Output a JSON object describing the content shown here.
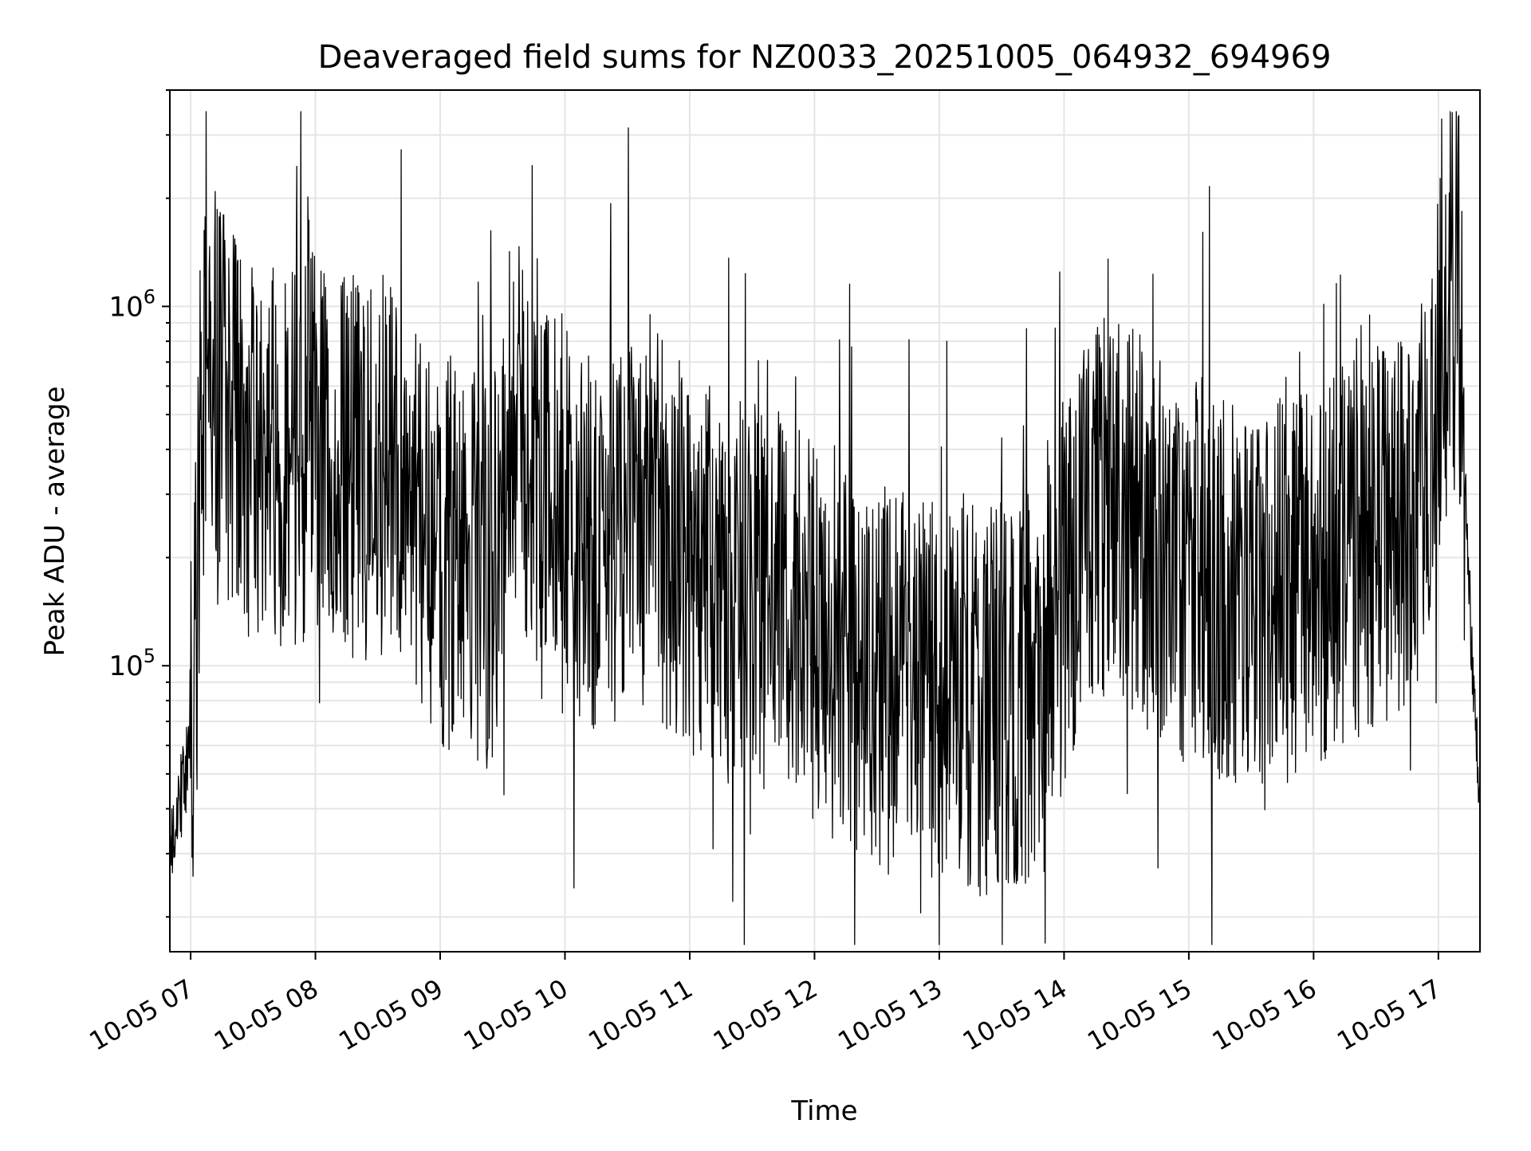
{
  "chart_data": {
    "type": "line",
    "title": "Deaveraged field sums for NZ0033_20251005_064932_694969",
    "xlabel": "Time",
    "ylabel": "Peak ADU - average",
    "yscale": "log",
    "ylim": [
      16000,
      4000000
    ],
    "xlim": [
      "2025-10-05 06:50",
      "2025-10-05 17:20"
    ],
    "grid": true,
    "line_color": "#000000",
    "grid_color": "#e5e5e5",
    "x_ticks": [
      "10-05 07",
      "10-05 08",
      "10-05 09",
      "10-05 10",
      "10-05 11",
      "10-05 12",
      "10-05 13",
      "10-05 14",
      "10-05 15",
      "10-05 16",
      "10-05 17"
    ],
    "x_tick_values": [
      "2025-10-05 07:00",
      "2025-10-05 08:00",
      "2025-10-05 09:00",
      "2025-10-05 10:00",
      "2025-10-05 11:00",
      "2025-10-05 12:00",
      "2025-10-05 13:00",
      "2025-10-05 14:00",
      "2025-10-05 15:00",
      "2025-10-05 16:00",
      "2025-10-05 17:00"
    ],
    "y_ticks": [
      {
        "value": 100000,
        "base": "10",
        "exp": "5"
      },
      {
        "value": 1000000,
        "base": "10",
        "exp": "6"
      }
    ],
    "series": [
      {
        "x": [
          "2025-10-05 06:50",
          "2025-10-05 06:55",
          "2025-10-05 07:00",
          "2025-10-05 07:03",
          "2025-10-05 07:05",
          "2025-10-05 07:10",
          "2025-10-05 07:20",
          "2025-10-05 07:30",
          "2025-10-05 07:45",
          "2025-10-05 08:00",
          "2025-10-05 08:15",
          "2025-10-05 08:30",
          "2025-10-05 08:45",
          "2025-10-05 08:55",
          "2025-10-05 09:10",
          "2025-10-05 09:25",
          "2025-10-05 09:35",
          "2025-10-05 09:50",
          "2025-10-05 10:05",
          "2025-10-05 10:20",
          "2025-10-05 10:35",
          "2025-10-05 10:50",
          "2025-10-05 11:05",
          "2025-10-05 11:20",
          "2025-10-05 11:35",
          "2025-10-05 11:50",
          "2025-10-05 12:05",
          "2025-10-05 12:20",
          "2025-10-05 12:35",
          "2025-10-05 12:50",
          "2025-10-05 13:05",
          "2025-10-05 13:20",
          "2025-10-05 13:35",
          "2025-10-05 13:50",
          "2025-10-05 14:00",
          "2025-10-05 14:15",
          "2025-10-05 14:30",
          "2025-10-05 14:45",
          "2025-10-05 15:00",
          "2025-10-05 15:15",
          "2025-10-05 15:30",
          "2025-10-05 15:45",
          "2025-10-05 16:00",
          "2025-10-05 16:15",
          "2025-10-05 16:30",
          "2025-10-05 16:45",
          "2025-10-05 16:55",
          "2025-10-05 17:00",
          "2025-10-05 17:05",
          "2025-10-05 17:10",
          "2025-10-05 17:15",
          "2025-10-05 17:20"
        ],
        "y": [
          30000,
          42000,
          60000,
          150000,
          500000,
          800000,
          450000,
          380000,
          400000,
          420000,
          350000,
          380000,
          300000,
          220000,
          200000,
          180000,
          500000,
          280000,
          230000,
          220000,
          250000,
          230000,
          180000,
          160000,
          150000,
          140000,
          120000,
          100000,
          90000,
          85000,
          95000,
          80000,
          85000,
          90000,
          160000,
          280000,
          260000,
          220000,
          180000,
          160000,
          150000,
          160000,
          180000,
          200000,
          220000,
          250000,
          350000,
          700000,
          1000000,
          1100000,
          150000,
          40000
        ]
      }
    ]
  }
}
